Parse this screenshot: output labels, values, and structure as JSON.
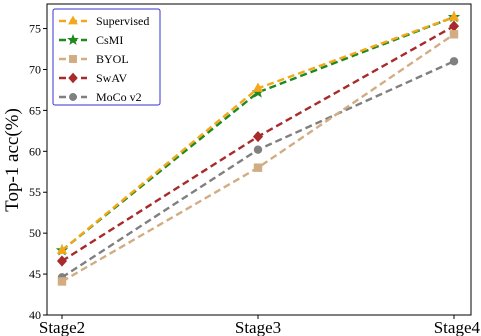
{
  "chart_data": {
    "type": "line",
    "title": "",
    "xlabel": "",
    "ylabel": "Top-1 acc(%)",
    "categories": [
      "Stage2",
      "Stage3",
      "Stage4"
    ],
    "ylim": [
      40,
      78
    ],
    "yticks": [
      40,
      45,
      50,
      55,
      60,
      65,
      70,
      75
    ],
    "grid": false,
    "legend": "top-left",
    "series": [
      {
        "name": "Supervised",
        "values": [
          47.9,
          67.7,
          76.4
        ],
        "color": "#f5a71a",
        "marker": "triangle"
      },
      {
        "name": "CsMI",
        "values": [
          47.9,
          67.2,
          76.4
        ],
        "color": "#1e8a1e",
        "marker": "star"
      },
      {
        "name": "BYOL",
        "values": [
          44.1,
          58.0,
          74.3
        ],
        "color": "#d2ad84",
        "marker": "square"
      },
      {
        "name": "SwAV",
        "values": [
          46.6,
          61.8,
          75.3
        ],
        "color": "#a82a2a",
        "marker": "diamond"
      },
      {
        "name": "MoCo v2",
        "values": [
          44.6,
          60.2,
          71.0
        ],
        "color": "#808080",
        "marker": "circle"
      }
    ]
  }
}
